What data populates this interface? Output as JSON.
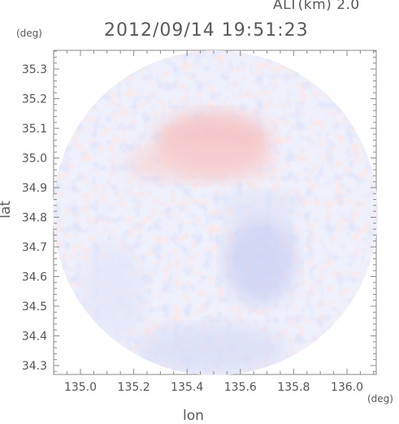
{
  "header": {
    "altitude_label": "ALT(km) 2.0",
    "timestamp": "2012/09/14 19:51:23"
  },
  "axes": {
    "x_label": "lon",
    "x_unit": "(deg)",
    "y_label": "lat",
    "y_unit": "(deg)",
    "x_ticks": [
      "135.0",
      "135.2",
      "135.4",
      "135.6",
      "135.8",
      "136.0"
    ],
    "y_ticks": [
      "35.3",
      "35.2",
      "35.1",
      "35.0",
      "34.9",
      "34.8",
      "34.7",
      "34.6",
      "34.5",
      "34.4",
      "34.3"
    ]
  },
  "colors": {
    "positive": "#f4b6b6",
    "negative": "#b9c2f4",
    "neutral": "#eef0fb",
    "frame": "#8a8a8a"
  }
}
